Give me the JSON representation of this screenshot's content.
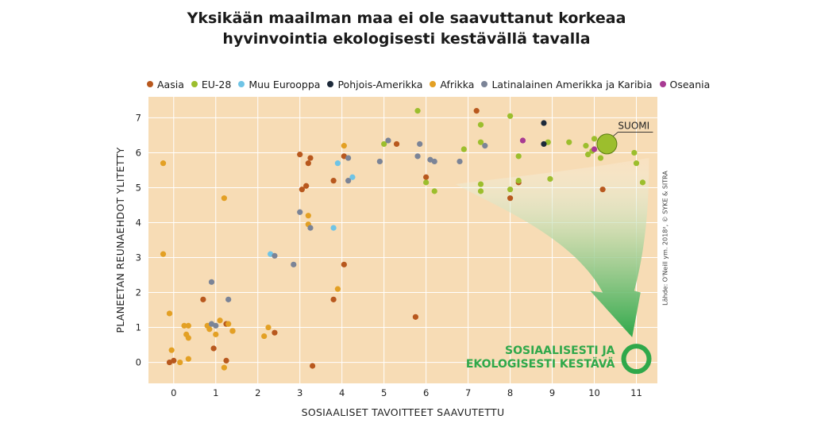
{
  "title_line1": "Yksikään maailman maa ei ole saavuttanut korkeaa",
  "title_line2": "hyvinvointia ekologisesti kestävällä tavalla",
  "source": "Lähde: O'Neill ym. 2018², © SYKE & SITRA",
  "colors": {
    "plot_bg": "#f7dcb5",
    "grid": "#ffffff",
    "Aasia": "#b8581e",
    "EU-28": "#9cbe2d",
    "Muu Eurooppa": "#6fc4e6",
    "Pohjois-Amerikka": "#1d2a3a",
    "Afrikka": "#e3a024",
    "Latinalainen Amerikka ja Karibia": "#7b8497",
    "Oseania": "#a83a93",
    "sustainable": "#2fa84a"
  },
  "annotations": {
    "suomi": "SUOMI",
    "sustainable_line1": "SOSIAALISESTI JA",
    "sustainable_line2": "EKOLOGISESTI KESTÄVÄ"
  },
  "chart_data": {
    "type": "scatter",
    "xlabel": "SOSIAALISET TAVOITTEET SAAVUTETTU",
    "ylabel": "PLANEETAN REUNAEHDOT YLITETTY",
    "xlim": [
      -0.6,
      11.5
    ],
    "ylim": [
      -0.6,
      7.6
    ],
    "xticks": [
      0,
      1,
      2,
      3,
      4,
      5,
      6,
      7,
      8,
      9,
      10,
      11
    ],
    "yticks": [
      0,
      1,
      2,
      3,
      4,
      5,
      6,
      7
    ],
    "grid": true,
    "legend": "top",
    "highlight": {
      "label": "SUOMI",
      "x": 10.3,
      "y": 6.25
    },
    "target": {
      "x": 11,
      "y": 0.1
    },
    "series": [
      {
        "name": "Aasia",
        "points": [
          [
            -0.1,
            0
          ],
          [
            0,
            0.05
          ],
          [
            0.7,
            1.8
          ],
          [
            0.95,
            0.4
          ],
          [
            1.25,
            1.1
          ],
          [
            1.25,
            0.05
          ],
          [
            1.4,
            0.9
          ],
          [
            2.4,
            0.85
          ],
          [
            3,
            5.95
          ],
          [
            3.05,
            4.95
          ],
          [
            3.15,
            5.05
          ],
          [
            3.2,
            5.7
          ],
          [
            3.25,
            5.85
          ],
          [
            3.3,
            -0.1
          ],
          [
            3.8,
            5.2
          ],
          [
            3.8,
            1.8
          ],
          [
            4.05,
            2.8
          ],
          [
            4.05,
            5.9
          ],
          [
            5.3,
            6.25
          ],
          [
            5.75,
            1.3
          ],
          [
            6,
            5.3
          ],
          [
            7.2,
            7.2
          ],
          [
            8,
            4.7
          ],
          [
            8.2,
            5.15
          ],
          [
            10.2,
            4.95
          ]
        ]
      },
      {
        "name": "EU-28",
        "points": [
          [
            5,
            6.25
          ],
          [
            5.8,
            7.2
          ],
          [
            6,
            5.15
          ],
          [
            6.2,
            4.9
          ],
          [
            6.9,
            6.1
          ],
          [
            7.3,
            6.8
          ],
          [
            7.3,
            6.3
          ],
          [
            7.3,
            5.1
          ],
          [
            7.3,
            4.9
          ],
          [
            8,
            7.05
          ],
          [
            8,
            4.95
          ],
          [
            8.2,
            5.9
          ],
          [
            8.2,
            5.2
          ],
          [
            8.9,
            6.3
          ],
          [
            8.95,
            5.25
          ],
          [
            9.4,
            6.3
          ],
          [
            9.8,
            6.2
          ],
          [
            9.85,
            5.95
          ],
          [
            9.95,
            6.05
          ],
          [
            10,
            6.4
          ],
          [
            10.15,
            5.85
          ],
          [
            10.95,
            6
          ],
          [
            11,
            5.7
          ],
          [
            11.15,
            5.15
          ]
        ]
      },
      {
        "name": "Muu Eurooppa",
        "points": [
          [
            2.3,
            3.1
          ],
          [
            3.8,
            3.85
          ],
          [
            3.9,
            5.7
          ],
          [
            4.25,
            5.3
          ]
        ]
      },
      {
        "name": "Pohjois-Amerikka",
        "points": [
          [
            8.8,
            6.85
          ],
          [
            8.8,
            6.25
          ]
        ]
      },
      {
        "name": "Afrikka",
        "points": [
          [
            -0.25,
            5.7
          ],
          [
            -0.25,
            3.1
          ],
          [
            -0.1,
            1.4
          ],
          [
            -0.05,
            0.35
          ],
          [
            0.15,
            0
          ],
          [
            0.25,
            1.05
          ],
          [
            0.3,
            0.8
          ],
          [
            0.35,
            0.1
          ],
          [
            0.35,
            1.05
          ],
          [
            0.35,
            0.7
          ],
          [
            0.8,
            1.05
          ],
          [
            0.85,
            0.95
          ],
          [
            1,
            0.8
          ],
          [
            1.1,
            1.2
          ],
          [
            1.2,
            -0.15
          ],
          [
            1.2,
            4.7
          ],
          [
            1.3,
            1.1
          ],
          [
            1.4,
            0.9
          ],
          [
            2.15,
            0.75
          ],
          [
            2.25,
            1
          ],
          [
            3.2,
            4.2
          ],
          [
            3.2,
            3.95
          ],
          [
            3.9,
            2.1
          ],
          [
            4.05,
            6.2
          ]
        ]
      },
      {
        "name": "Latinalainen Amerikka ja Karibia",
        "points": [
          [
            0.9,
            2.3
          ],
          [
            0.9,
            1.1
          ],
          [
            1,
            1.05
          ],
          [
            1.3,
            1.8
          ],
          [
            2.4,
            3.05
          ],
          [
            2.85,
            2.8
          ],
          [
            3,
            4.3
          ],
          [
            3.25,
            3.85
          ],
          [
            4.15,
            5.2
          ],
          [
            4.15,
            5.85
          ],
          [
            4.9,
            5.75
          ],
          [
            5.1,
            6.35
          ],
          [
            5.8,
            5.9
          ],
          [
            5.85,
            6.25
          ],
          [
            6.1,
            5.8
          ],
          [
            6.2,
            5.75
          ],
          [
            6.8,
            5.75
          ],
          [
            7.4,
            6.2
          ]
        ]
      },
      {
        "name": "Oseania",
        "points": [
          [
            8.3,
            6.35
          ],
          [
            10,
            6.1
          ]
        ]
      }
    ]
  }
}
